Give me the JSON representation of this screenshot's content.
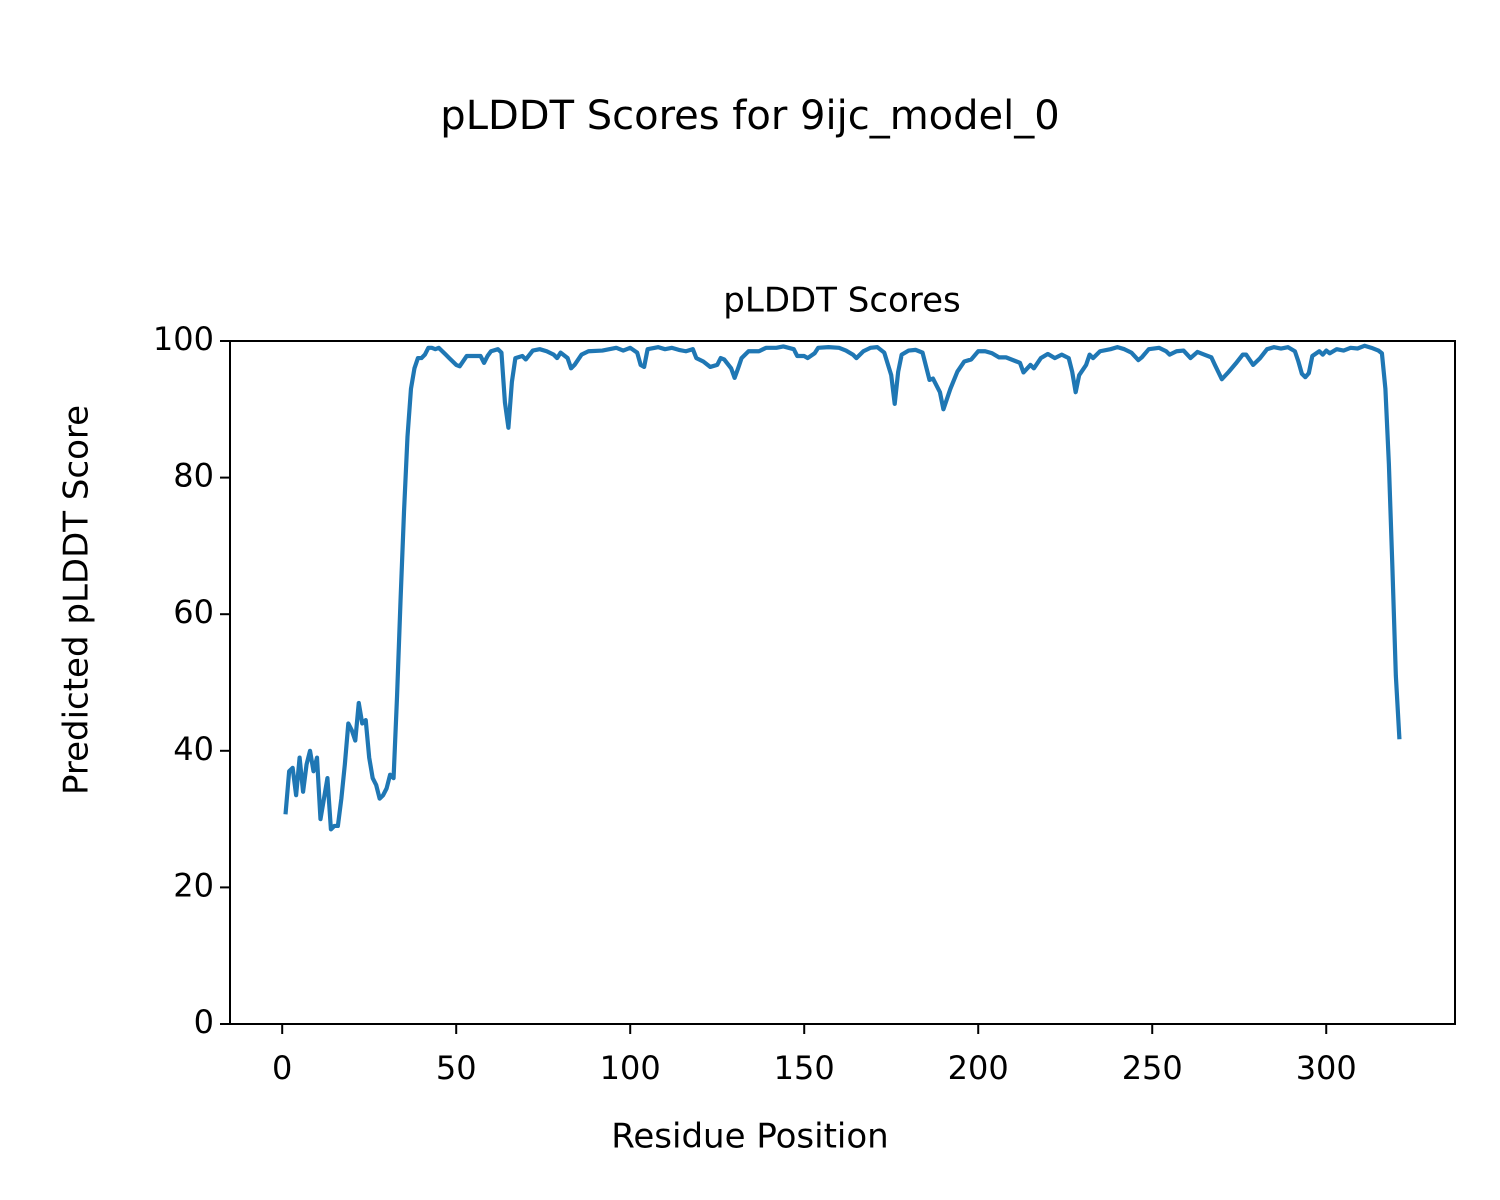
{
  "chart_data": {
    "type": "line",
    "suptitle": "pLDDT Scores for 9ijc_model_0",
    "title": "pLDDT Scores",
    "xlabel": "Residue Position",
    "ylabel": "Predicted pLDDT Score",
    "xlim": [
      -15,
      337
    ],
    "ylim": [
      0,
      100
    ],
    "xticks": [
      0,
      50,
      100,
      150,
      200,
      250,
      300
    ],
    "yticks": [
      0,
      20,
      40,
      60,
      80,
      100
    ],
    "grid": false,
    "series": [
      {
        "color": "#1f77b4",
        "x": [
          1,
          2,
          3,
          4,
          5,
          6,
          7,
          8,
          9,
          10,
          11,
          12,
          13,
          14,
          15,
          16,
          17,
          18,
          19,
          20,
          21,
          22,
          23,
          24,
          25,
          26,
          27,
          28,
          29,
          30,
          31,
          32,
          33,
          34,
          35,
          36,
          37,
          38,
          39,
          40,
          41,
          42,
          43,
          44,
          45,
          46,
          47,
          48,
          49,
          50,
          51,
          53,
          55,
          57,
          58,
          59,
          60,
          62,
          63,
          64,
          65,
          66,
          67,
          69,
          70,
          72,
          74,
          76,
          78,
          79,
          80,
          82,
          83,
          84,
          86,
          88,
          92,
          96,
          98,
          100,
          102,
          103,
          104,
          105,
          108,
          110,
          112,
          114,
          116,
          118,
          119,
          121,
          123,
          125,
          126,
          127,
          129,
          130,
          131,
          132,
          134,
          137,
          139,
          142,
          144,
          147,
          148,
          150,
          151,
          153,
          154,
          157,
          160,
          162,
          164,
          165,
          167,
          169,
          171,
          173,
          175,
          176,
          177,
          178,
          180,
          182,
          184,
          186,
          187,
          189,
          190,
          192,
          194,
          196,
          198,
          200,
          202,
          204,
          206,
          208,
          210,
          212,
          213,
          215,
          216,
          218,
          220,
          222,
          224,
          226,
          227,
          228,
          229,
          231,
          232,
          233,
          235,
          238,
          240,
          242,
          244,
          246,
          247,
          249,
          252,
          254,
          255,
          257,
          259,
          261,
          263,
          265,
          267,
          268,
          270,
          272,
          274,
          276,
          277,
          279,
          281,
          283,
          285,
          287,
          289,
          291,
          292,
          293,
          294,
          295,
          296,
          298,
          299,
          300,
          301,
          303,
          305,
          307,
          309,
          311,
          313,
          315,
          316,
          317,
          318,
          319,
          320,
          321
        ],
        "values": [
          31,
          37,
          37.5,
          33.5,
          39,
          34,
          38,
          40,
          37,
          39,
          30,
          33,
          36,
          28.5,
          29,
          29,
          33,
          38,
          44,
          43,
          41.5,
          47,
          44,
          44.5,
          39,
          36,
          35,
          33,
          33.5,
          34.5,
          36.5,
          36,
          48,
          62,
          75,
          86,
          93,
          96,
          97.5,
          97.5,
          98,
          99,
          99,
          98.8,
          99,
          98.5,
          98,
          97.5,
          97,
          96.5,
          96.3,
          97.8,
          97.8,
          97.8,
          96.8,
          97.8,
          98.5,
          98.8,
          98.3,
          91,
          87.3,
          94,
          97.5,
          97.8,
          97.3,
          98.6,
          98.8,
          98.5,
          98,
          97.5,
          98.3,
          97.5,
          96,
          96.5,
          98,
          98.5,
          98.6,
          99,
          98.6,
          99,
          98.3,
          96.5,
          96.2,
          98.8,
          99.1,
          98.8,
          99,
          98.7,
          98.5,
          98.8,
          97.5,
          97,
          96.2,
          96.5,
          97.5,
          97.3,
          96,
          94.6,
          96,
          97.5,
          98.5,
          98.5,
          99,
          99,
          99.2,
          98.8,
          97.8,
          97.8,
          97.5,
          98.2,
          99,
          99.1,
          99,
          98.6,
          98,
          97.5,
          98.5,
          99,
          99.1,
          98.3,
          95,
          90.8,
          95.5,
          98,
          98.6,
          98.7,
          98.3,
          94.3,
          94.5,
          92.5,
          90,
          93,
          95.5,
          97,
          97.3,
          98.5,
          98.5,
          98.2,
          97.6,
          97.6,
          97.2,
          96.8,
          95.4,
          96.5,
          96,
          97.5,
          98.1,
          97.5,
          98,
          97.5,
          95.5,
          92.5,
          95,
          96.5,
          98,
          97.5,
          98.5,
          98.8,
          99.1,
          98.8,
          98.3,
          97.2,
          97.6,
          98.8,
          99,
          98.5,
          98,
          98.5,
          98.6,
          97.5,
          98.4,
          98,
          97.6,
          96.5,
          94.4,
          95.5,
          96.7,
          98,
          98,
          96.5,
          97.5,
          98.8,
          99.1,
          98.9,
          99.1,
          98.5,
          97,
          95.2,
          94.7,
          95.3,
          97.8,
          98.5,
          98,
          98.6,
          98.2,
          98.8,
          98.6,
          99,
          98.9,
          99.3,
          99,
          98.6,
          98.2,
          93,
          82,
          67,
          51,
          42
        ]
      }
    ]
  }
}
